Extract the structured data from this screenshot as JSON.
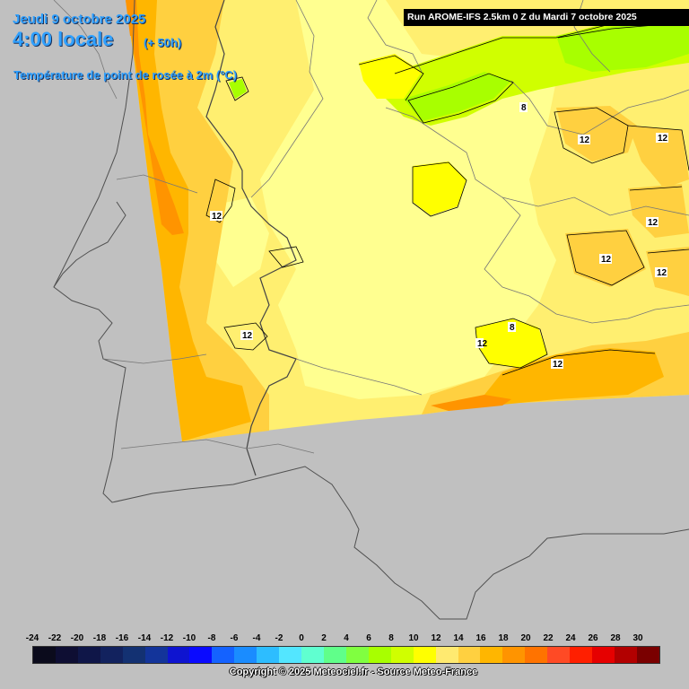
{
  "header": {
    "date": "Jeudi 9 octobre 2025",
    "time": "4:00 locale",
    "lead": "(+ 50h)",
    "parameter": "Température de point de rosée à 2m (°C)"
  },
  "run_label": "Run AROME-IFS 2.5km 0 Z du Mardi 7 octobre 2025",
  "copyright": "Copyright © 2025 Meteociel.fr - Source Meteo-France",
  "legend": {
    "labels": [
      "-24",
      "-22",
      "-20",
      "-18",
      "-16",
      "-14",
      "-12",
      "-10",
      "-8",
      "-6",
      "-4",
      "-2",
      "0",
      "2",
      "4",
      "6",
      "8",
      "10",
      "12",
      "14",
      "16",
      "18",
      "20",
      "22",
      "24",
      "26",
      "28",
      "30"
    ],
    "colors": [
      "#0b0b1c",
      "#0e0e33",
      "#0f1648",
      "#12225e",
      "#133172",
      "#13349a",
      "#0e14d0",
      "#0a0aff",
      "#1462ff",
      "#1a8cff",
      "#2dbdff",
      "#53e6ff",
      "#60ffd0",
      "#60ff8a",
      "#80ff40",
      "#a8ff00",
      "#d0ff00",
      "#ffff00",
      "#ffea70",
      "#ffd040",
      "#ffb600",
      "#ff9400",
      "#ff7300",
      "#ff4a25",
      "#ff1f00",
      "#e60000",
      "#b20000",
      "#7a0000"
    ]
  },
  "contour_labels": [
    "12",
    "12",
    "12",
    "12",
    "12",
    "12",
    "12",
    "12",
    "8",
    "8",
    "12"
  ],
  "colors": {
    "background": "#c0c0c0",
    "title_blue": "#2fa0ff",
    "pale_yellow": "#ffff90",
    "light_yellow": "#ffef70",
    "gold": "#ffd040",
    "orange": "#ffb600",
    "dark_orange": "#ff9400",
    "green": "#a8ff00"
  }
}
